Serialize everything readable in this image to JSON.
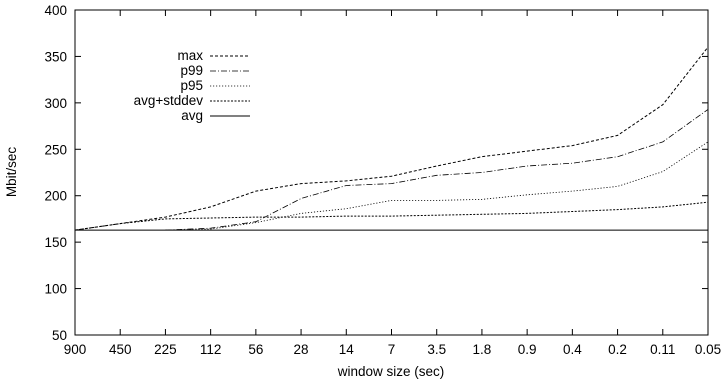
{
  "chart_data": {
    "type": "line",
    "xlabel": "window size (sec)",
    "ylabel": "Mbit/sec",
    "ylim": [
      50,
      400
    ],
    "yticks": [
      50,
      100,
      150,
      200,
      250,
      300,
      350,
      400
    ],
    "categories": [
      "900",
      "450",
      "225",
      "112",
      "56",
      "28",
      "14",
      "7",
      "3.5",
      "1.8",
      "0.9",
      "0.4",
      "0.2",
      "0.11",
      "0.05"
    ],
    "grid": false,
    "legend_position": "top-left",
    "series": [
      {
        "name": "max",
        "dash": "3,2",
        "width": 1,
        "values": [
          163,
          170,
          177,
          188,
          205,
          213,
          216,
          221,
          232,
          242,
          248,
          254,
          265,
          298,
          360
        ]
      },
      {
        "name": "p99",
        "dash": "6,2,1,2",
        "width": 0.8,
        "values": [
          null,
          null,
          163,
          165,
          172,
          197,
          211,
          213,
          222,
          225,
          232,
          235,
          242,
          258,
          293
        ]
      },
      {
        "name": "p95",
        "dash": "1.2,1.8",
        "width": 0.8,
        "values": [
          null,
          null,
          163,
          164,
          171,
          181,
          186,
          195,
          195,
          196,
          201,
          205,
          210,
          226,
          258
        ]
      },
      {
        "name": "avg+stddev",
        "dash": "2,1.5",
        "width": 1,
        "values": [
          163,
          170,
          175,
          176,
          177,
          177,
          178,
          178,
          179,
          180,
          181,
          183,
          185,
          188,
          193
        ]
      },
      {
        "name": "avg",
        "dash": "",
        "width": 1,
        "values": [
          163,
          163,
          163,
          163,
          163,
          163,
          163,
          163,
          163,
          163,
          163,
          163,
          163,
          163,
          163
        ]
      }
    ]
  }
}
